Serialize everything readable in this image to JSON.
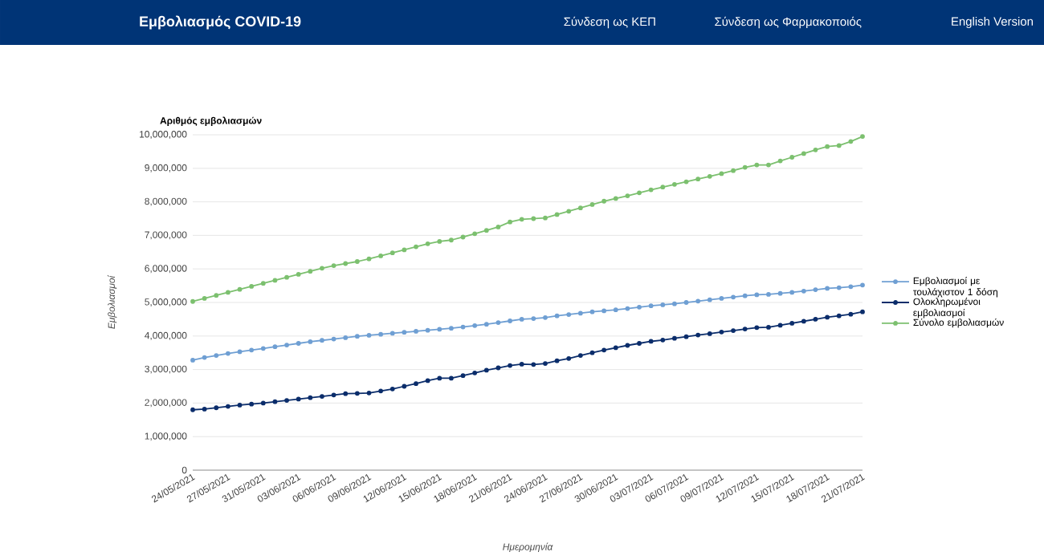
{
  "chart_data": {
    "type": "line",
    "title": "Αριθμός εμβολιασμών",
    "xlabel": "Ημερομηνία",
    "ylabel": "Εμβολιασμοί",
    "annotations": [
      "Εμβολιασμός COVID-19",
      "Σύνδεση ως ΚΕΠ",
      "Σύνδεση ως Φαρμακοποιός",
      "English Version"
    ],
    "categories": [
      "24/05/2021",
      null,
      null,
      "27/05/2021",
      null,
      null,
      "31/05/2021",
      null,
      null,
      "03/06/2021",
      null,
      null,
      "06/06/2021",
      null,
      null,
      "09/06/2021",
      null,
      null,
      "12/06/2021",
      null,
      null,
      "15/06/2021",
      null,
      null,
      "18/06/2021",
      null,
      null,
      "21/06/2021",
      null,
      null,
      "24/06/2021",
      null,
      null,
      "27/06/2021",
      null,
      null,
      "30/06/2021",
      null,
      null,
      "03/07/2021",
      null,
      null,
      "06/07/2021",
      null,
      null,
      "09/07/2021",
      null,
      null,
      "12/07/2021",
      null,
      null,
      "15/07/2021",
      null,
      null,
      "18/07/2021",
      null,
      null,
      "21/07/2021"
    ],
    "series": [
      {
        "name": "Εμβολιασμοί με τουλάχιστον 1 δόση",
        "color": "#6f9fd3",
        "values": [
          3280000,
          3360000,
          3420000,
          3480000,
          3530000,
          3580000,
          3630000,
          3680000,
          3730000,
          3780000,
          3830000,
          3870000,
          3910000,
          3950000,
          3990000,
          4020000,
          4050000,
          4080000,
          4110000,
          4140000,
          4170000,
          4200000,
          4230000,
          4270000,
          4310000,
          4350000,
          4400000,
          4450000,
          4500000,
          4520000,
          4550000,
          4600000,
          4640000,
          4680000,
          4720000,
          4750000,
          4780000,
          4820000,
          4860000,
          4900000,
          4930000,
          4960000,
          5000000,
          5040000,
          5080000,
          5120000,
          5160000,
          5200000,
          5230000,
          5240000,
          5270000,
          5300000,
          5340000,
          5380000,
          5420000,
          5440000,
          5470000,
          5520000
        ]
      },
      {
        "name": "Ολοκληρωμένοι εμβολιασμοί",
        "color": "#0b2d6b",
        "values": [
          1800000,
          1820000,
          1860000,
          1900000,
          1940000,
          1970000,
          2000000,
          2040000,
          2080000,
          2120000,
          2160000,
          2200000,
          2240000,
          2280000,
          2290000,
          2300000,
          2360000,
          2420000,
          2500000,
          2580000,
          2670000,
          2740000,
          2740000,
          2820000,
          2900000,
          2980000,
          3050000,
          3120000,
          3160000,
          3150000,
          3180000,
          3260000,
          3330000,
          3420000,
          3500000,
          3580000,
          3650000,
          3720000,
          3780000,
          3840000,
          3880000,
          3930000,
          3980000,
          4030000,
          4070000,
          4120000,
          4160000,
          4210000,
          4250000,
          4260000,
          4320000,
          4380000,
          4440000,
          4500000,
          4560000,
          4600000,
          4650000,
          4720000
        ]
      },
      {
        "name": "Σύνολο εμβολιασμών",
        "color": "#7cc06f",
        "values": [
          5030000,
          5120000,
          5210000,
          5300000,
          5390000,
          5480000,
          5570000,
          5660000,
          5750000,
          5840000,
          5930000,
          6020000,
          6100000,
          6160000,
          6220000,
          6300000,
          6390000,
          6480000,
          6570000,
          6660000,
          6750000,
          6820000,
          6860000,
          6950000,
          7050000,
          7150000,
          7250000,
          7400000,
          7480000,
          7500000,
          7520000,
          7620000,
          7720000,
          7820000,
          7920000,
          8020000,
          8100000,
          8180000,
          8270000,
          8360000,
          8440000,
          8520000,
          8600000,
          8680000,
          8760000,
          8840000,
          8930000,
          9030000,
          9100000,
          9100000,
          9220000,
          9330000,
          9440000,
          9550000,
          9650000,
          9680000,
          9800000,
          9950000
        ]
      }
    ],
    "ylim": [
      0,
      10000000
    ],
    "yticks": [
      0,
      {
        "value": 1000000,
        "label": "1,000,000"
      },
      {
        "value": 2000000,
        "label": "2,000,000"
      },
      {
        "value": 3000000,
        "label": "3,000,000"
      },
      {
        "value": 4000000,
        "label": "4,000,000"
      },
      {
        "value": 5000000,
        "label": "5,000,000"
      },
      {
        "value": 6000000,
        "label": "6,000,000"
      },
      {
        "value": 7000000,
        "label": "7,000,000"
      },
      {
        "value": 8000000,
        "label": "8,000,000"
      },
      {
        "value": 9000000,
        "label": "9,000,000"
      },
      {
        "value": 10000000,
        "label": "10,000,000"
      }
    ],
    "grid": "y",
    "legend": "right",
    "marker": "circle",
    "line_style": "solid"
  }
}
